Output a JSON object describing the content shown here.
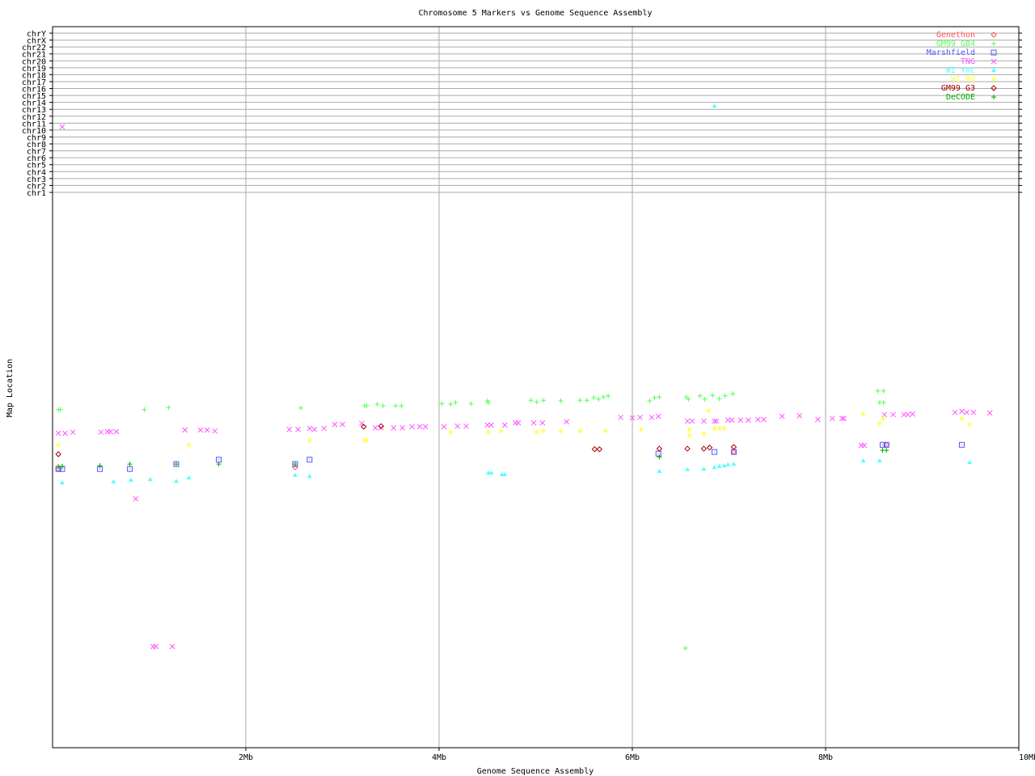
{
  "chart_data": {
    "type": "scatter",
    "title": "Chromosome 5 Markers vs Genome Sequence Assembly",
    "xlabel": "Genome Sequence Assembly",
    "ylabel": "Map Location",
    "xlim": [
      0,
      10
    ],
    "ylim": [
      0,
      100
    ],
    "x_ticks": [
      {
        "v": 2,
        "label": "2Mb"
      },
      {
        "v": 4,
        "label": "4Mb"
      },
      {
        "v": 6,
        "label": "6Mb"
      },
      {
        "v": 8,
        "label": "8Mb"
      },
      {
        "v": 10,
        "label": "10Mb"
      }
    ],
    "chromosome_rows": [
      "chrY",
      "chrX",
      "chr22",
      "chr21",
      "chr20",
      "chr19",
      "chr18",
      "chr17",
      "chr16",
      "chr15",
      "chr14",
      "chr13",
      "chr12",
      "chr11",
      "chr10",
      "chr9",
      "chr8",
      "chr7",
      "chr6",
      "chr5",
      "chr4",
      "chr3",
      "chr2",
      "chr1"
    ],
    "grid": true,
    "legend_placement": "top-right",
    "series": [
      {
        "name": "Genethon",
        "color": "#ff5555",
        "marker": "diamond",
        "points": [
          [
            0.06,
            50.7
          ],
          [
            2.51,
            51.0
          ],
          [
            7.05,
            53.8
          ],
          [
            8.63,
            55.1
          ]
        ]
      },
      {
        "name": "GM99 GB4",
        "color": "#55ff55",
        "marker": "plus",
        "points": [
          [
            0.06,
            61.5
          ],
          [
            0.08,
            61.5
          ],
          [
            0.95,
            61.5
          ],
          [
            1.2,
            61.9
          ],
          [
            2.57,
            61.8
          ],
          [
            3.23,
            62.2
          ],
          [
            3.25,
            62.2
          ],
          [
            3.36,
            62.5
          ],
          [
            3.42,
            62.2
          ],
          [
            3.55,
            62.2
          ],
          [
            3.61,
            62.2
          ],
          [
            4.03,
            62.6
          ],
          [
            4.12,
            62.5
          ],
          [
            4.17,
            62.8
          ],
          [
            4.33,
            62.6
          ],
          [
            4.5,
            63.1
          ],
          [
            4.51,
            62.8
          ],
          [
            4.95,
            63.2
          ],
          [
            5.01,
            62.9
          ],
          [
            5.08,
            63.2
          ],
          [
            5.26,
            63.1
          ],
          [
            5.46,
            63.2
          ],
          [
            5.53,
            63.2
          ],
          [
            5.6,
            63.7
          ],
          [
            5.65,
            63.4
          ],
          [
            5.7,
            63.8
          ],
          [
            5.75,
            64.0
          ],
          [
            6.18,
            63.1
          ],
          [
            6.23,
            63.7
          ],
          [
            6.28,
            63.8
          ],
          [
            6.56,
            63.8
          ],
          [
            6.58,
            63.4
          ],
          [
            6.7,
            64.0
          ],
          [
            6.75,
            63.4
          ],
          [
            6.83,
            64.1
          ],
          [
            6.9,
            63.5
          ],
          [
            6.96,
            64.0
          ],
          [
            7.04,
            64.4
          ],
          [
            6.55,
            18.1
          ],
          [
            8.54,
            64.9
          ],
          [
            8.6,
            64.9
          ],
          [
            8.56,
            62.8
          ],
          [
            8.6,
            62.8
          ]
        ]
      },
      {
        "name": "Marshfield",
        "color": "#5555ff",
        "marker": "square",
        "points": [
          [
            0.06,
            50.7
          ],
          [
            0.1,
            50.7
          ],
          [
            0.49,
            50.7
          ],
          [
            0.8,
            50.7
          ],
          [
            1.28,
            51.6
          ],
          [
            1.72,
            52.4
          ],
          [
            2.51,
            51.6
          ],
          [
            2.66,
            52.4
          ],
          [
            6.27,
            53.5
          ],
          [
            6.85,
            53.8
          ],
          [
            7.05,
            53.8
          ],
          [
            8.59,
            55.1
          ],
          [
            8.63,
            55.1
          ],
          [
            9.41,
            55.1
          ]
        ]
      },
      {
        "name": "TNG",
        "color": "#ff55ff",
        "marker": "x",
        "points": [
          [
            0.06,
            57.2
          ],
          [
            0.13,
            57.2
          ],
          [
            0.21,
            57.4
          ],
          [
            0.5,
            57.4
          ],
          [
            0.57,
            57.5
          ],
          [
            0.6,
            57.5
          ],
          [
            0.66,
            57.5
          ],
          [
            0.86,
            45.3
          ],
          [
            1.37,
            57.8
          ],
          [
            1.53,
            57.8
          ],
          [
            1.6,
            57.8
          ],
          [
            1.68,
            57.6
          ],
          [
            2.45,
            57.9
          ],
          [
            2.54,
            57.9
          ],
          [
            2.66,
            58.1
          ],
          [
            2.71,
            57.9
          ],
          [
            2.81,
            58.1
          ],
          [
            2.92,
            58.8
          ],
          [
            3.0,
            58.8
          ],
          [
            3.2,
            59.0
          ],
          [
            3.34,
            58.2
          ],
          [
            3.4,
            58.2
          ],
          [
            3.53,
            58.2
          ],
          [
            3.62,
            58.2
          ],
          [
            3.72,
            58.4
          ],
          [
            3.8,
            58.4
          ],
          [
            3.86,
            58.4
          ],
          [
            4.05,
            58.4
          ],
          [
            4.19,
            58.5
          ],
          [
            4.28,
            58.5
          ],
          [
            4.5,
            58.7
          ],
          [
            4.54,
            58.7
          ],
          [
            4.68,
            58.7
          ],
          [
            4.79,
            59.1
          ],
          [
            4.82,
            59.1
          ],
          [
            4.98,
            59.1
          ],
          [
            5.07,
            59.1
          ],
          [
            5.32,
            59.3
          ],
          [
            5.88,
            60.1
          ],
          [
            6.0,
            60.0
          ],
          [
            6.08,
            60.1
          ],
          [
            6.2,
            60.1
          ],
          [
            6.27,
            60.3
          ],
          [
            6.57,
            59.4
          ],
          [
            6.62,
            59.4
          ],
          [
            6.74,
            59.4
          ],
          [
            6.85,
            59.4
          ],
          [
            6.87,
            59.4
          ],
          [
            6.99,
            59.6
          ],
          [
            7.03,
            59.6
          ],
          [
            7.12,
            59.6
          ],
          [
            7.2,
            59.6
          ],
          [
            7.3,
            59.7
          ],
          [
            7.36,
            59.7
          ],
          [
            7.55,
            60.3
          ],
          [
            7.73,
            60.4
          ],
          [
            7.92,
            59.7
          ],
          [
            8.07,
            59.9
          ],
          [
            8.17,
            59.9
          ],
          [
            8.19,
            59.9
          ],
          [
            8.37,
            55.0
          ],
          [
            8.4,
            55.0
          ],
          [
            8.61,
            60.6
          ],
          [
            8.7,
            60.6
          ],
          [
            8.81,
            60.6
          ],
          [
            8.85,
            60.6
          ],
          [
            8.9,
            60.7
          ],
          [
            9.34,
            61.0
          ],
          [
            9.41,
            61.2
          ],
          [
            9.46,
            61.0
          ],
          [
            9.53,
            61.0
          ],
          [
            9.7,
            60.9
          ],
          [
            1.04,
            18.4
          ],
          [
            1.07,
            18.4
          ],
          [
            1.24,
            18.4
          ]
        ],
        "chr_points": [
          {
            "x": 0.1,
            "chr": "chr10"
          }
        ]
      },
      {
        "name": "WI YAC",
        "color": "#55ffff",
        "marker": "triangle",
        "points": [
          [
            0.1,
            48.2
          ],
          [
            0.63,
            48.4
          ],
          [
            0.81,
            48.7
          ],
          [
            1.01,
            48.8
          ],
          [
            1.28,
            48.5
          ],
          [
            1.41,
            49.1
          ],
          [
            2.51,
            49.6
          ],
          [
            2.66,
            49.4
          ],
          [
            4.51,
            50.0
          ],
          [
            4.54,
            50.0
          ],
          [
            4.65,
            49.7
          ],
          [
            4.68,
            49.7
          ],
          [
            6.28,
            50.3
          ],
          [
            6.57,
            50.6
          ],
          [
            6.74,
            50.7
          ],
          [
            6.85,
            51.0
          ],
          [
            6.9,
            51.2
          ],
          [
            6.95,
            51.3
          ],
          [
            6.99,
            51.5
          ],
          [
            7.05,
            51.6
          ],
          [
            8.39,
            52.2
          ],
          [
            8.56,
            52.2
          ],
          [
            9.49,
            51.9
          ]
        ],
        "chr_points": [
          {
            "x": 6.85,
            "chr": "chr13"
          }
        ]
      },
      {
        "name": "WI RH",
        "color": "#ffff55",
        "marker": "asterisk",
        "points": [
          [
            0.06,
            55.1
          ],
          [
            1.41,
            55.1
          ],
          [
            2.66,
            55.9
          ],
          [
            3.23,
            55.9
          ],
          [
            3.25,
            55.9
          ],
          [
            4.12,
            57.4
          ],
          [
            4.51,
            57.4
          ],
          [
            4.64,
            57.6
          ],
          [
            5.01,
            57.4
          ],
          [
            5.08,
            57.6
          ],
          [
            5.26,
            57.6
          ],
          [
            5.46,
            57.6
          ],
          [
            5.72,
            57.6
          ],
          [
            6.09,
            57.9
          ],
          [
            6.59,
            57.9
          ],
          [
            6.79,
            61.3
          ],
          [
            6.85,
            58.1
          ],
          [
            6.9,
            58.1
          ],
          [
            6.95,
            58.1
          ],
          [
            6.74,
            57.1
          ],
          [
            6.59,
            56.8
          ],
          [
            8.39,
            60.7
          ],
          [
            8.56,
            59.0
          ],
          [
            8.6,
            59.9
          ],
          [
            9.41,
            59.9
          ],
          [
            9.49,
            58.8
          ]
        ]
      },
      {
        "name": "GM99 G3",
        "color": "#aa0000",
        "marker": "diamond",
        "points": [
          [
            0.06,
            53.4
          ],
          [
            3.22,
            58.4
          ],
          [
            3.4,
            58.5
          ],
          [
            5.61,
            54.3
          ],
          [
            5.66,
            54.3
          ],
          [
            6.28,
            54.4
          ],
          [
            6.57,
            54.4
          ],
          [
            6.74,
            54.4
          ],
          [
            6.8,
            54.6
          ],
          [
            7.05,
            54.7
          ]
        ]
      },
      {
        "name": "DeCODE",
        "color": "#00aa00",
        "marker": "plus",
        "points": [
          [
            0.06,
            51.2
          ],
          [
            0.1,
            51.2
          ],
          [
            0.49,
            51.3
          ],
          [
            0.8,
            51.6
          ],
          [
            1.28,
            51.6
          ],
          [
            1.72,
            51.6
          ],
          [
            2.51,
            51.6
          ],
          [
            6.28,
            52.9
          ],
          [
            8.59,
            54.1
          ],
          [
            8.63,
            54.1
          ]
        ]
      }
    ]
  }
}
